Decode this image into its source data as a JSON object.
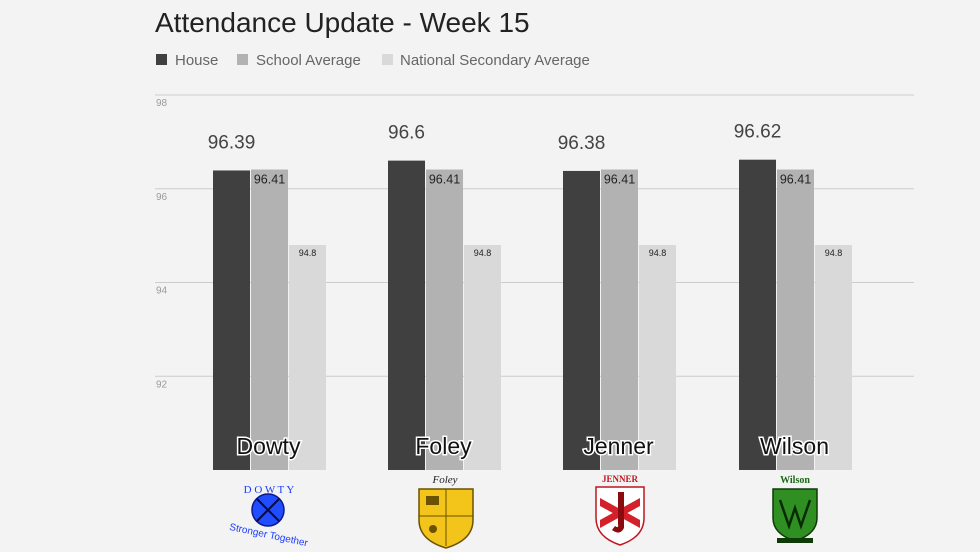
{
  "chart_data": {
    "type": "bar",
    "title": "Attendance Update - Week 15",
    "categories": [
      "Dowty",
      "Foley",
      "Jenner",
      "Wilson"
    ],
    "series": [
      {
        "name": "House",
        "values": [
          96.39,
          96.6,
          96.38,
          96.62
        ]
      },
      {
        "name": "School Average",
        "values": [
          96.41,
          96.41,
          96.41,
          96.41
        ]
      },
      {
        "name": "National Secondary Average",
        "values": [
          94.8,
          94.8,
          94.8,
          94.8
        ]
      }
    ],
    "data_labels": {
      "house": [
        "96.39",
        "96.6",
        "96.38",
        "96.62"
      ],
      "school": [
        "96.41",
        "96.41",
        "96.41",
        "96.41"
      ],
      "national": [
        "94.8",
        "94.8",
        "94.8",
        "94.8"
      ]
    },
    "y_ticks": [
      92,
      94,
      96,
      98
    ],
    "ylim": [
      90,
      98
    ],
    "grid": true,
    "legend_position": "top-left",
    "colors": {
      "house": "#404040",
      "school": "#b2b2b2",
      "national": "#d9d9d9",
      "grid": "#cccccc",
      "background": "#f3f3f3"
    }
  },
  "logos": {
    "dowty": {
      "letters": "D O W T Y",
      "motto": "Stronger Together"
    },
    "foley": {
      "name": "Foley"
    },
    "jenner": {
      "name": "JENNER"
    },
    "wilson": {
      "name": "Wilson"
    }
  }
}
